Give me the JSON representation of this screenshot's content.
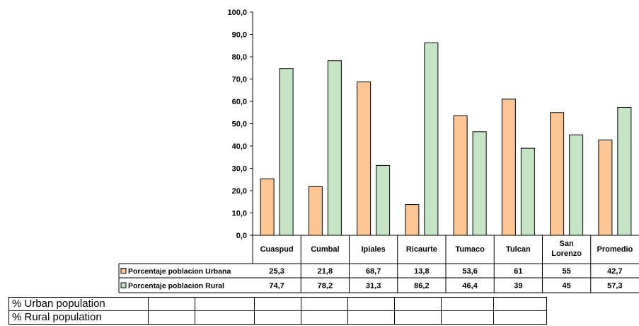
{
  "chart_data": {
    "type": "bar",
    "categories": [
      "Cuaspud",
      "Cumbal",
      "Ipiales",
      "Ricaurte",
      "Tumaco",
      "Tulcan",
      "San Lorenzo",
      "Promedio"
    ],
    "category_lines": [
      [
        "Cuaspud"
      ],
      [
        "Cumbal"
      ],
      [
        "Ipiales"
      ],
      [
        "Ricaurte"
      ],
      [
        "Tumaco"
      ],
      [
        "Tulcan"
      ],
      [
        "San",
        "Lorenzo"
      ],
      [
        "Promedio"
      ]
    ],
    "series": [
      {
        "name": "Porcentaje poblacion Urbana",
        "values": [
          25.3,
          21.8,
          68.7,
          13.8,
          53.6,
          61,
          55,
          42.7
        ],
        "labels": [
          "25,3",
          "21,8",
          "68,7",
          "13,8",
          "53,6",
          "61",
          "55",
          "42,7"
        ],
        "color": "#FBC594"
      },
      {
        "name": "Porcentaje poblacion Rural",
        "values": [
          74.7,
          78.2,
          31.3,
          86.2,
          46.4,
          39,
          45,
          57.3
        ],
        "labels": [
          "74,7",
          "78,2",
          "31,3",
          "86,2",
          "46,4",
          "39",
          "45",
          "57,3"
        ],
        "color": "#C5E4C5"
      }
    ],
    "yticks": [
      "0,0",
      "10,0",
      "20,0",
      "30,0",
      "40,0",
      "50,0",
      "60,0",
      "70,0",
      "80,0",
      "90,0",
      "100,0"
    ],
    "ylim": [
      0,
      100
    ],
    "grid": false,
    "legend": "data-table"
  },
  "blank_table": {
    "rows": [
      {
        "label": "% Urban population"
      },
      {
        "label": "% Rural population"
      }
    ]
  }
}
